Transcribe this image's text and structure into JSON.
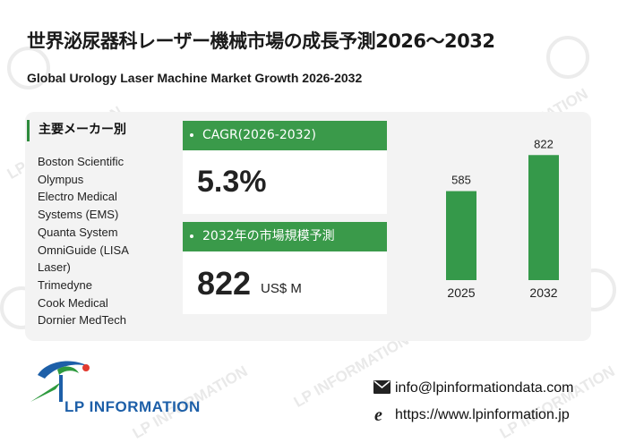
{
  "header": {
    "title": "世界泌尿器科レーザー機械市場の成長予測2026～2032",
    "subtitle": "Global Urology Laser Machine Market Growth 2026-2032"
  },
  "manufacturers": {
    "heading": "主要メーカー別",
    "items": [
      "Boston Scientific",
      "Olympus",
      "Electro Medical",
      "Systems (EMS)",
      "Quanta System",
      "OmniGuide (LISA",
      "Laser)",
      "Trimedyne",
      "Cook Medical",
      "Dornier MedTech"
    ]
  },
  "cagr": {
    "label": "CAGR(2026-2032)",
    "value": "5.3%"
  },
  "market": {
    "label": "2032年の市場規模予測",
    "value": "822",
    "unit": "US$ M"
  },
  "footer": {
    "email": "info@lpinformationdata.com",
    "url": "https://www.lpinformation.jp",
    "logo_text": "LP INFORMATION"
  },
  "watermark": "LP INFORMATION",
  "colors": {
    "accent": "#3a9a4a",
    "bar": "#35994a",
    "logo_blue": "#1d5fa8",
    "logo_green": "#2e9a3e"
  },
  "chart_data": {
    "type": "bar",
    "categories": [
      "2025",
      "2032"
    ],
    "values": [
      585,
      822
    ],
    "title": "",
    "xlabel": "",
    "ylabel": ""
  }
}
